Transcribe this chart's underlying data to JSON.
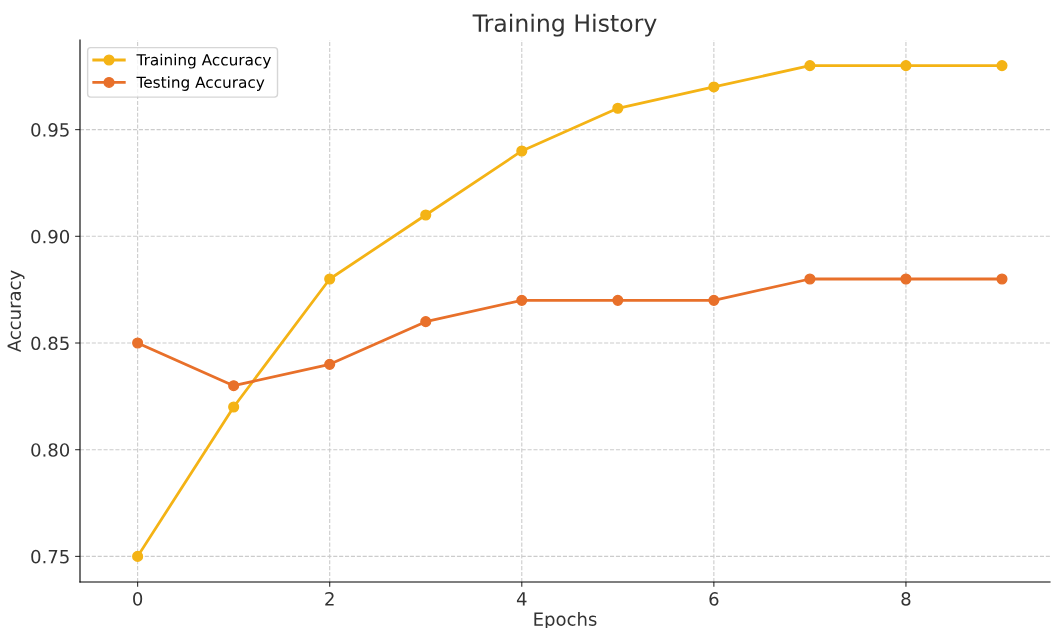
{
  "chart_data": {
    "type": "line",
    "title": "Training History",
    "xlabel": "Epochs",
    "ylabel": "Accuracy",
    "x": [
      0,
      1,
      2,
      3,
      4,
      5,
      6,
      7,
      8,
      9
    ],
    "series": [
      {
        "name": "Training Accuracy",
        "color": "#f4b315",
        "values": [
          0.75,
          0.82,
          0.88,
          0.91,
          0.94,
          0.96,
          0.97,
          0.98,
          0.98,
          0.98
        ]
      },
      {
        "name": "Testing Accuracy",
        "color": "#e8702a",
        "values": [
          0.85,
          0.83,
          0.84,
          0.86,
          0.87,
          0.87,
          0.87,
          0.88,
          0.88,
          0.88
        ]
      }
    ],
    "xlim": [
      -0.6,
      9.5
    ],
    "xticks": [
      0,
      2,
      4,
      6,
      8
    ],
    "ylim": [
      0.738,
      0.992
    ],
    "yticks": [
      {
        "value": 0.75,
        "label": "0.75"
      },
      {
        "value": 0.8,
        "label": "0.80"
      },
      {
        "value": 0.85,
        "label": "0.85"
      },
      {
        "value": 0.9,
        "label": "0.90"
      },
      {
        "value": 0.95,
        "label": "0.95"
      }
    ],
    "grid": true,
    "legend": "top left",
    "marker": "circle",
    "line_style": "solid"
  }
}
